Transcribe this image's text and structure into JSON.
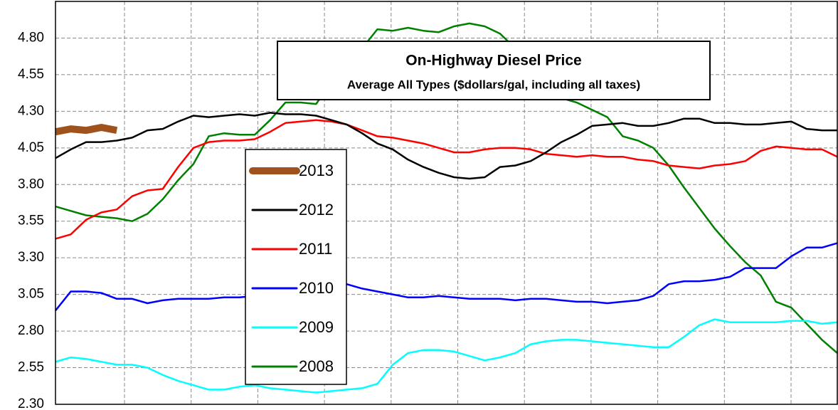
{
  "chart_data": {
    "type": "line",
    "title": "On-Highway Diesel Price",
    "subtitle": "Average All Types ($dollars/gal, including all taxes)",
    "categories": [
      null,
      null,
      null,
      null,
      null,
      null,
      null,
      null,
      null,
      null,
      null,
      null,
      null,
      null,
      null,
      null,
      null,
      null,
      null,
      null,
      null,
      null,
      null,
      null,
      null,
      null,
      null,
      null,
      null,
      null,
      null,
      null,
      null,
      null,
      null,
      null,
      null,
      null,
      null,
      null,
      null,
      null,
      null,
      null,
      null,
      null,
      null,
      null,
      null,
      null,
      null,
      null
    ],
    "ylim": [
      2.3,
      5.05
    ],
    "yticks": [
      {
        "value": 2.3,
        "label": "2.30"
      },
      2.55,
      {
        "value": 2.8,
        "label": "2.80"
      },
      3.05,
      {
        "value": 3.3,
        "label": "3.30"
      },
      3.55,
      {
        "value": 3.8,
        "label": "3.80"
      },
      4.05,
      {
        "value": 4.3,
        "label": "4.30"
      },
      4.55,
      {
        "value": 4.8,
        "label": "4.80"
      }
    ],
    "grid": true,
    "series": [
      {
        "name": "2013",
        "color": "#a0521c",
        "values": [
          4.16,
          4.18,
          4.17,
          4.19,
          4.17,
          null,
          null,
          null,
          null,
          null,
          null,
          null,
          null,
          null,
          null,
          null,
          null,
          null,
          null,
          null,
          null,
          null,
          null,
          null,
          null,
          null,
          null,
          null,
          null,
          null,
          null,
          null,
          null,
          null,
          null,
          null,
          null,
          null,
          null,
          null,
          null,
          null,
          null,
          null,
          null,
          null,
          null,
          null,
          null,
          null,
          null,
          null
        ]
      },
      {
        "name": "2012",
        "color": "#000000",
        "values": [
          3.98,
          4.04,
          4.09,
          4.09,
          4.1,
          4.12,
          4.17,
          4.18,
          4.23,
          4.27,
          4.26,
          4.27,
          4.28,
          4.27,
          4.29,
          4.28,
          4.28,
          4.27,
          4.24,
          4.21,
          4.15,
          4.08,
          4.04,
          3.97,
          3.92,
          3.88,
          3.85,
          3.84,
          3.85,
          3.92,
          3.93,
          3.96,
          4.02,
          4.09,
          4.14,
          4.2,
          4.21,
          4.22,
          4.2,
          4.2,
          4.22,
          4.25,
          4.25,
          4.22,
          4.22,
          4.21,
          4.21,
          4.22,
          4.23,
          4.18,
          4.17,
          4.17
        ]
      },
      {
        "name": "2011",
        "color": "#ff0000",
        "values": [
          3.43,
          3.46,
          3.56,
          3.61,
          3.63,
          3.72,
          3.76,
          3.77,
          3.92,
          4.05,
          4.09,
          4.1,
          4.1,
          4.11,
          4.16,
          4.22,
          4.23,
          4.24,
          4.23,
          4.21,
          4.17,
          4.13,
          4.12,
          4.1,
          4.08,
          4.05,
          4.02,
          4.02,
          4.04,
          4.05,
          4.05,
          4.04,
          4.01,
          4.0,
          3.99,
          4.0,
          3.99,
          3.99,
          3.97,
          3.96,
          3.93,
          3.92,
          3.91,
          3.93,
          3.94,
          3.96,
          4.03,
          4.06,
          4.05,
          4.04,
          4.04,
          3.99
        ]
      },
      {
        "name": "2010",
        "color": "#0000ff",
        "values": [
          2.94,
          3.07,
          3.07,
          3.06,
          3.02,
          3.02,
          2.99,
          3.01,
          3.02,
          3.02,
          3.02,
          3.03,
          3.03,
          3.04,
          3.07,
          3.09,
          3.12,
          3.14,
          3.14,
          3.12,
          3.09,
          3.07,
          3.05,
          3.03,
          3.03,
          3.04,
          3.03,
          3.02,
          3.02,
          3.02,
          3.01,
          3.02,
          3.02,
          3.01,
          3.0,
          3.0,
          2.99,
          3.0,
          3.01,
          3.04,
          3.12,
          3.14,
          3.14,
          3.15,
          3.17,
          3.23,
          3.23,
          3.23,
          3.31,
          3.37,
          3.37,
          3.4
        ]
      },
      {
        "name": "2009",
        "color": "#00ffff",
        "values": [
          2.59,
          2.62,
          2.61,
          2.59,
          2.57,
          2.57,
          2.55,
          2.5,
          2.46,
          2.43,
          2.4,
          2.4,
          2.42,
          2.43,
          2.41,
          2.4,
          2.39,
          2.38,
          2.39,
          2.4,
          2.41,
          2.44,
          2.57,
          2.65,
          2.67,
          2.67,
          2.66,
          2.63,
          2.6,
          2.62,
          2.65,
          2.71,
          2.73,
          2.74,
          2.74,
          2.73,
          2.72,
          2.71,
          2.7,
          2.69,
          2.69,
          2.76,
          2.84,
          2.88,
          2.86,
          2.86,
          2.86,
          2.86,
          2.87,
          2.87,
          2.85,
          2.86
        ]
      },
      {
        "name": "2008",
        "color": "#008000",
        "values": [
          3.65,
          3.62,
          3.59,
          3.58,
          3.57,
          3.55,
          3.6,
          3.7,
          3.83,
          3.94,
          4.13,
          4.15,
          4.14,
          4.14,
          4.24,
          4.36,
          4.36,
          4.35,
          4.5,
          4.67,
          4.73,
          4.86,
          4.85,
          4.87,
          4.85,
          4.84,
          4.88,
          4.9,
          4.88,
          4.83,
          4.73,
          4.6,
          4.48,
          4.39,
          4.36,
          4.31,
          4.26,
          4.13,
          4.1,
          4.05,
          3.93,
          3.78,
          3.64,
          3.5,
          3.38,
          3.27,
          3.18,
          3.0,
          2.96,
          2.85,
          2.74,
          2.65
        ]
      }
    ]
  }
}
